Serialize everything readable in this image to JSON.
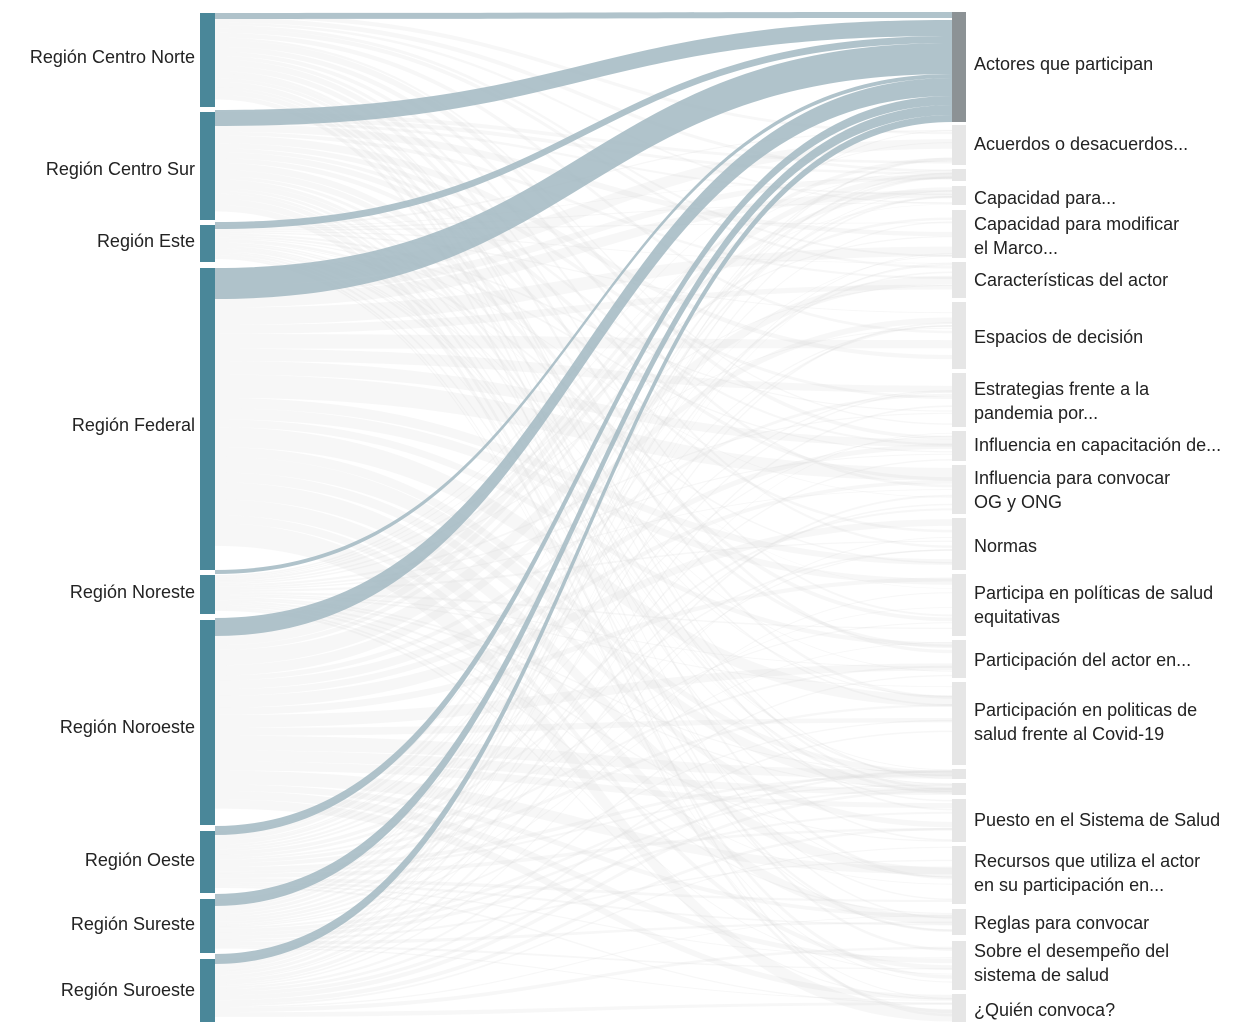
{
  "sankey": {
    "sources": [
      {
        "label": "Región Centro Norte"
      },
      {
        "label": "Región Centro Sur"
      },
      {
        "label": "Región Este"
      },
      {
        "label": "Región Federal"
      },
      {
        "label": "Región Noreste"
      },
      {
        "label": "Región Noroeste"
      },
      {
        "label": "Región Oeste"
      },
      {
        "label": "Región Sureste"
      },
      {
        "label": "Región Suroeste"
      }
    ],
    "targets": [
      {
        "label": "Actores que participan",
        "highlighted": true
      },
      {
        "label": "Acuerdos o desacuerdos..."
      },
      {
        "label": ""
      },
      {
        "label": "Capacidad para..."
      },
      {
        "label": "Capacidad para modificar\nel Marco..."
      },
      {
        "label": "Características del actor"
      },
      {
        "label": "Espacios de decisión"
      },
      {
        "label": "Estrategias frente a la\npandemia por..."
      },
      {
        "label": "Influencia en capacitación de..."
      },
      {
        "label": "Influencia para convocar\nOG y ONG"
      },
      {
        "label": "Normas"
      },
      {
        "label": "Participa en políticas de salud\nequitativas"
      },
      {
        "label": "Participación del actor en..."
      },
      {
        "label": "Participación en politicas de\nsalud frente al Covid-19"
      },
      {
        "label": ""
      },
      {
        "label": ""
      },
      {
        "label": "Puesto en el Sistema de Salud"
      },
      {
        "label": "Recursos que utiliza el actor\nen su participación en..."
      },
      {
        "label": "Reglas para convocar"
      },
      {
        "label": "Sobre el desempeño del\nsistema de salud"
      },
      {
        "label": "¿Quién convoca?"
      }
    ]
  }
}
